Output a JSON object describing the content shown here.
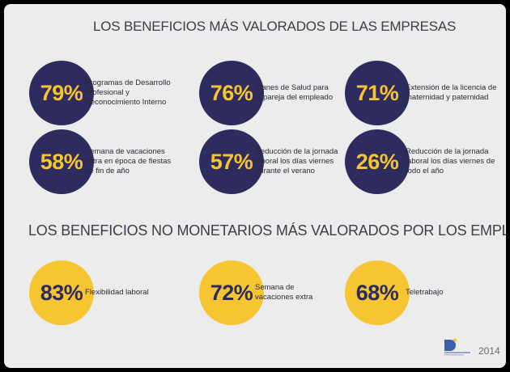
{
  "chart_data": [
    {
      "type": "table",
      "title": "LOS BENEFICIOS MÁS VALORADOS DE LAS EMPRESAS",
      "items": [
        {
          "value": 79,
          "label": "79%",
          "text": "Programas de Desarrollo Profesional y Reconocimiento Interno"
        },
        {
          "value": 76,
          "label": "76%",
          "text": "Planes de Salud para la pareja del empleado"
        },
        {
          "value": 71,
          "label": "71%",
          "text": "Extensión de la licencia de maternidad y paternidad"
        },
        {
          "value": 58,
          "label": "58%",
          "text": "Semana de vacaciones extra en época de fiestas de fin de año"
        },
        {
          "value": 57,
          "label": "57%",
          "text": "Reducción de la jornada laboral los días viernes durante el verano"
        },
        {
          "value": 26,
          "label": "26%",
          "text": "Reducción de la jornada laboral los días viernes de todo el año"
        }
      ]
    },
    {
      "type": "table",
      "title": "LOS BENEFICIOS NO MONETARIOS MÁS VALORADOS POR LOS EMPLEADOS",
      "items": [
        {
          "value": 83,
          "label": "83%",
          "text": "Flexibilidad laboral"
        },
        {
          "value": 72,
          "label": "72%",
          "text": "Semana de vacaciones extra"
        },
        {
          "value": 68,
          "label": "68%",
          "text": "Teletrabajo"
        }
      ]
    }
  ],
  "colors": {
    "navy": "#2e2b5f",
    "yellow": "#f6c531",
    "background": "#ececec"
  },
  "footer": {
    "year": "2014",
    "logo_icon": "company-logo-icon"
  }
}
